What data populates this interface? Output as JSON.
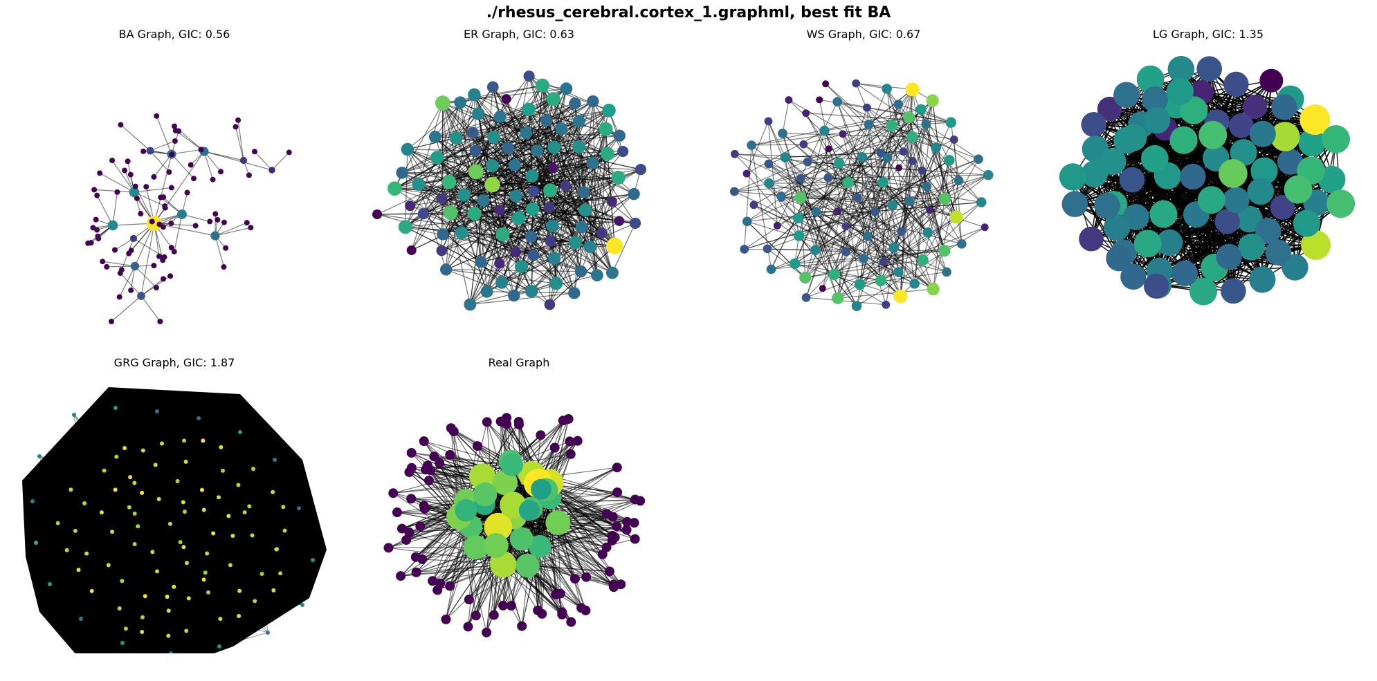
{
  "figure": {
    "title": "./rhesus_cerebral.cortex_1.graphml, best fit BA"
  },
  "panels": [
    {
      "id": "ba",
      "title": "BA Graph, GIC: 0.56"
    },
    {
      "id": "er",
      "title": "ER Graph, GIC: 0.63"
    },
    {
      "id": "ws",
      "title": "WS Graph, GIC: 0.67"
    },
    {
      "id": "lg",
      "title": "LG Graph, GIC: 1.35"
    },
    {
      "id": "grg",
      "title": "GRG Graph, GIC: 1.87"
    },
    {
      "id": "real",
      "title": "Real Graph"
    }
  ],
  "style": {
    "colormap": "viridis",
    "edge_color": "#000000",
    "background": "#ffffff"
  }
}
